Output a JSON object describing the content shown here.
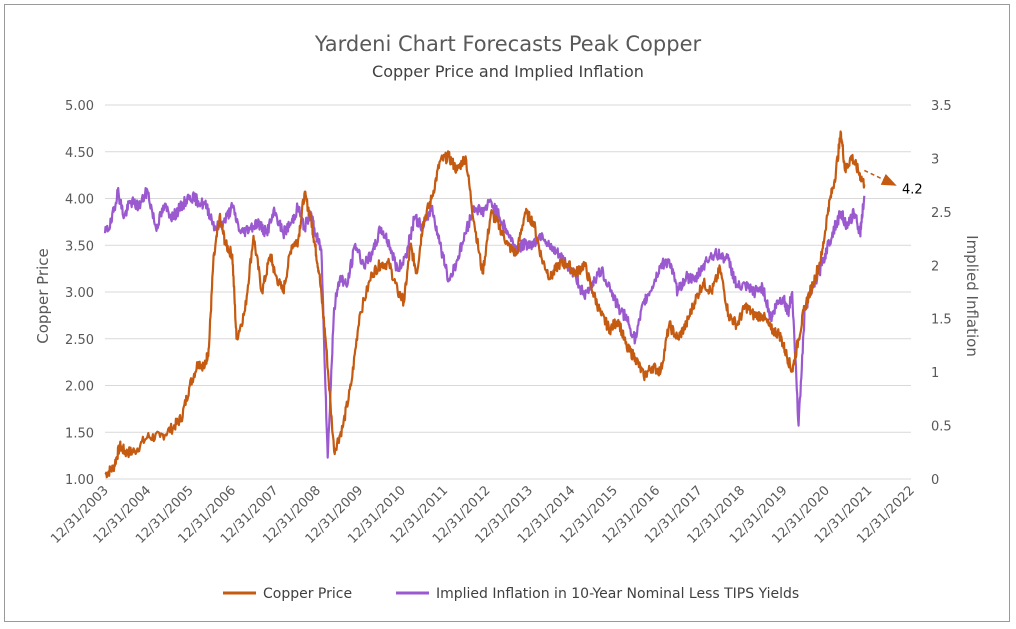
{
  "chart_data": {
    "type": "line",
    "title": "Yardeni Chart Forecasts Peak Copper",
    "subtitle": "Copper Price and Implied Inflation",
    "ylabel": "Copper Price",
    "y2label": "Implied Inflation",
    "ylim": [
      1.0,
      5.0
    ],
    "y2lim": [
      0,
      3.5
    ],
    "yticks": [
      "1.00",
      "1.50",
      "2.00",
      "2.50",
      "3.00",
      "3.50",
      "4.00",
      "4.50",
      "5.00"
    ],
    "y2ticks": [
      "0",
      "0.5",
      "1",
      "1.5",
      "2",
      "2.5",
      "3",
      "3.5"
    ],
    "xticks": [
      "12/31/2003",
      "12/31/2004",
      "12/31/2005",
      "12/31/2006",
      "12/31/2007",
      "12/31/2008",
      "12/31/2009",
      "12/31/2010",
      "12/31/2011",
      "12/31/2012",
      "12/31/2013",
      "12/31/2014",
      "12/31/2015",
      "12/31/2016",
      "12/31/2017",
      "12/31/2018",
      "12/31/2019",
      "12/31/2020",
      "12/31/2021",
      "12/31/2022"
    ],
    "xlim": [
      2004.0,
      2023.0
    ],
    "grid": "horizontal",
    "legend": "bottom",
    "colors": {
      "copper": "#c55a11",
      "inflation": "#9b59d0",
      "grid": "#d9d9d9"
    },
    "series": [
      {
        "name": "Copper Price",
        "axis": "left",
        "color": "#c55a11",
        "x": [
          2004.0,
          2004.2,
          2004.35,
          2004.5,
          2004.7,
          2005.0,
          2005.3,
          2005.6,
          2005.8,
          2006.0,
          2006.2,
          2006.35,
          2006.45,
          2006.55,
          2006.7,
          2006.85,
          2007.0,
          2007.1,
          2007.3,
          2007.5,
          2007.7,
          2007.9,
          2008.0,
          2008.2,
          2008.4,
          2008.55,
          2008.7,
          2008.85,
          2008.95,
          2009.05,
          2009.2,
          2009.4,
          2009.6,
          2009.8,
          2010.0,
          2010.3,
          2010.5,
          2010.7,
          2010.9,
          2011.05,
          2011.2,
          2011.35,
          2011.5,
          2011.7,
          2011.9,
          2012.1,
          2012.3,
          2012.5,
          2012.7,
          2012.9,
          2013.1,
          2013.3,
          2013.5,
          2013.7,
          2013.9,
          2014.1,
          2014.3,
          2014.5,
          2014.7,
          2014.9,
          2015.1,
          2015.3,
          2015.5,
          2015.7,
          2015.9,
          2016.1,
          2016.3,
          2016.5,
          2016.7,
          2016.9,
          2017.1,
          2017.3,
          2017.5,
          2017.7,
          2017.9,
          2018.1,
          2018.3,
          2018.5,
          2018.7,
          2018.9,
          2019.1,
          2019.3,
          2019.5,
          2019.7,
          2019.9,
          2020.05,
          2020.2,
          2020.35,
          2020.5,
          2020.7,
          2020.9,
          2021.05,
          2021.2,
          2021.35,
          2021.45,
          2021.6,
          2021.75,
          2021.9
        ],
        "values": [
          1.05,
          1.12,
          1.35,
          1.28,
          1.3,
          1.45,
          1.45,
          1.55,
          1.65,
          2.0,
          2.25,
          2.2,
          2.4,
          3.3,
          3.8,
          3.5,
          3.4,
          2.5,
          2.8,
          3.6,
          3.0,
          3.4,
          3.2,
          3.0,
          3.5,
          3.55,
          4.05,
          3.8,
          3.5,
          3.2,
          2.5,
          1.3,
          1.55,
          2.0,
          2.75,
          3.2,
          3.3,
          3.3,
          3.0,
          2.9,
          3.5,
          3.2,
          3.75,
          4.0,
          4.4,
          4.45,
          4.3,
          4.45,
          3.75,
          3.2,
          3.85,
          3.7,
          3.5,
          3.4,
          3.85,
          3.75,
          3.35,
          3.15,
          3.3,
          3.3,
          3.2,
          3.3,
          3.0,
          2.75,
          2.6,
          2.7,
          2.4,
          2.3,
          2.1,
          2.2,
          2.15,
          2.65,
          2.5,
          2.65,
          2.9,
          3.1,
          3.0,
          3.25,
          2.75,
          2.65,
          2.85,
          2.75,
          2.75,
          2.6,
          2.55,
          2.35,
          2.15,
          2.5,
          2.85,
          3.1,
          3.4,
          3.9,
          4.2,
          4.7,
          4.3,
          4.45,
          4.3,
          4.15
        ]
      },
      {
        "name": "Implied Inflation in 10-Year Nominal Less TIPS Yields",
        "axis": "right",
        "color": "#9b59d0",
        "x": [
          2004.0,
          2004.15,
          2004.3,
          2004.45,
          2004.6,
          2004.8,
          2005.0,
          2005.2,
          2005.4,
          2005.6,
          2005.8,
          2006.0,
          2006.2,
          2006.4,
          2006.6,
          2006.8,
          2007.0,
          2007.2,
          2007.4,
          2007.6,
          2007.8,
          2008.0,
          2008.2,
          2008.4,
          2008.55,
          2008.7,
          2008.85,
          2008.95,
          2009.1,
          2009.25,
          2009.4,
          2009.55,
          2009.7,
          2009.9,
          2010.1,
          2010.3,
          2010.5,
          2010.7,
          2010.9,
          2011.1,
          2011.3,
          2011.5,
          2011.7,
          2011.9,
          2012.1,
          2012.3,
          2012.5,
          2012.7,
          2012.9,
          2013.1,
          2013.3,
          2013.5,
          2013.7,
          2013.9,
          2014.1,
          2014.3,
          2014.5,
          2014.7,
          2014.9,
          2015.1,
          2015.3,
          2015.5,
          2015.7,
          2015.9,
          2016.1,
          2016.3,
          2016.5,
          2016.7,
          2016.9,
          2017.1,
          2017.3,
          2017.5,
          2017.7,
          2017.9,
          2018.1,
          2018.3,
          2018.5,
          2018.7,
          2018.9,
          2019.1,
          2019.3,
          2019.5,
          2019.7,
          2019.85,
          2020.0,
          2020.1,
          2020.2,
          2020.35,
          2020.5,
          2020.7,
          2020.9,
          2021.05,
          2021.2,
          2021.35,
          2021.5,
          2021.65,
          2021.8,
          2021.9
        ],
        "values": [
          2.3,
          2.4,
          2.7,
          2.45,
          2.6,
          2.55,
          2.7,
          2.35,
          2.55,
          2.45,
          2.55,
          2.65,
          2.6,
          2.55,
          2.35,
          2.4,
          2.55,
          2.3,
          2.35,
          2.4,
          2.3,
          2.5,
          2.3,
          2.4,
          2.55,
          2.35,
          2.5,
          2.3,
          2.15,
          0.2,
          1.6,
          1.9,
          1.8,
          2.2,
          2.0,
          2.1,
          2.35,
          2.2,
          1.95,
          2.1,
          2.45,
          2.35,
          2.55,
          2.2,
          1.85,
          2.05,
          2.3,
          2.55,
          2.5,
          2.6,
          2.45,
          2.3,
          2.15,
          2.2,
          2.2,
          2.3,
          2.15,
          2.1,
          2.0,
          1.9,
          1.7,
          1.85,
          1.95,
          1.8,
          1.6,
          1.5,
          1.3,
          1.65,
          1.8,
          2.0,
          2.05,
          1.75,
          1.9,
          1.85,
          2.0,
          2.1,
          2.1,
          2.05,
          1.8,
          1.8,
          1.75,
          1.8,
          1.5,
          1.65,
          1.7,
          1.55,
          1.75,
          0.5,
          1.6,
          1.8,
          2.0,
          2.2,
          2.35,
          2.5,
          2.35,
          2.5,
          2.3,
          2.65
        ]
      }
    ],
    "annotations": [
      {
        "text": "4.2",
        "arrow_from": [
          2021.9,
          4.3
        ],
        "arrow_to": [
          2022.6,
          4.15
        ],
        "style": "dashed",
        "color": "#c55a11"
      }
    ]
  }
}
